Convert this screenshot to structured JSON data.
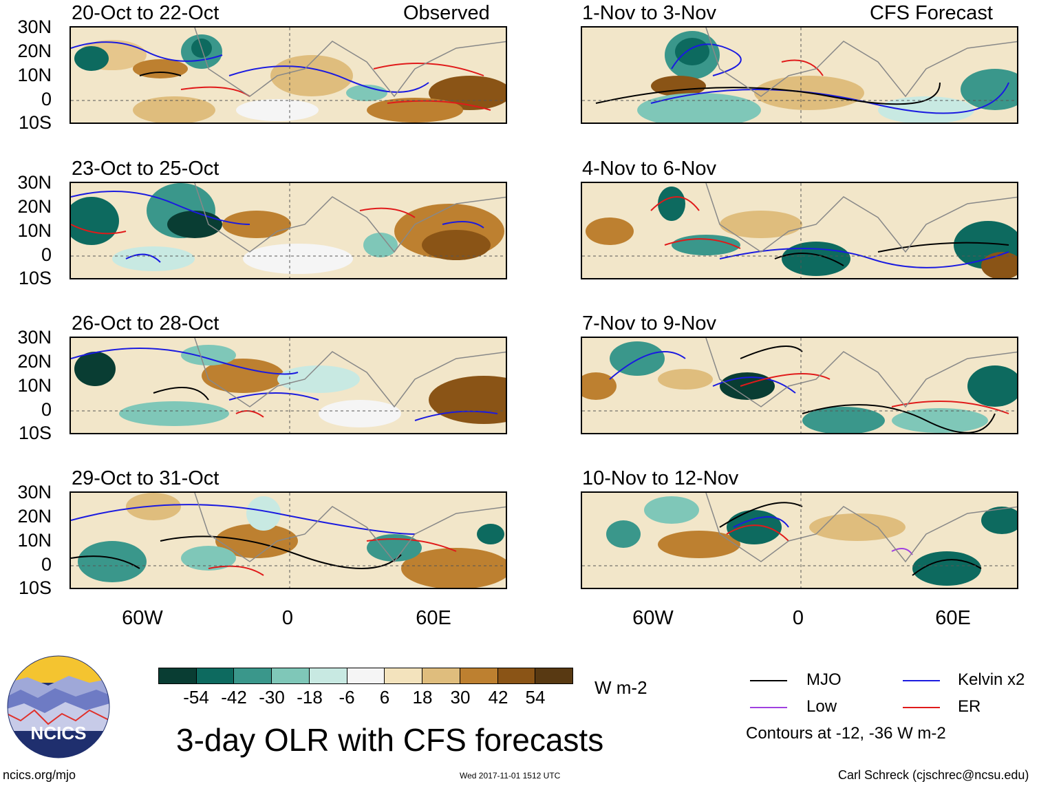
{
  "header": {
    "observed_label": "Observed",
    "forecast_label": "CFS Forecast"
  },
  "panels_left": [
    {
      "title": "20-Oct to 22-Oct"
    },
    {
      "title": "23-Oct to 25-Oct"
    },
    {
      "title": "26-Oct to 28-Oct"
    },
    {
      "title": "29-Oct to 31-Oct"
    }
  ],
  "panels_right": [
    {
      "title": "1-Nov to 3-Nov"
    },
    {
      "title": "4-Nov to 6-Nov"
    },
    {
      "title": "7-Nov to 9-Nov"
    },
    {
      "title": "10-Nov to 12-Nov"
    }
  ],
  "lat_labels": [
    "30N",
    "20N",
    "10N",
    "0",
    "10S"
  ],
  "lon_labels": [
    "60W",
    "0",
    "60E"
  ],
  "colorbar": {
    "colors": [
      "#093d33",
      "#0d6a5f",
      "#3a978b",
      "#7fc7b8",
      "#c8e9e2",
      "#f5f5f5",
      "#f3e3bd",
      "#dfbd7d",
      "#bd8030",
      "#8a5416",
      "#583912"
    ],
    "labels": [
      "-54",
      "-42",
      "-30",
      "-18",
      "-6",
      "6",
      "18",
      "30",
      "42",
      "54"
    ],
    "unit": "W m-2"
  },
  "legend": {
    "items": [
      {
        "label": "MJO",
        "color": "#000000"
      },
      {
        "label": "Kelvin x2",
        "color": "#1a1ae0"
      },
      {
        "label": "Low",
        "color": "#a040e0"
      },
      {
        "label": "ER",
        "color": "#e01a1a"
      }
    ],
    "note": "Contours at -12, -36 W m-2"
  },
  "title": "3-day OLR with CFS forecasts",
  "logo_text": "NCICS",
  "footer": {
    "url": "ncics.org/mjo",
    "timestamp": "Wed 2017-11-01 1512 UTC",
    "credit": "Carl Schreck (cjschrec@ncsu.edu)"
  }
}
